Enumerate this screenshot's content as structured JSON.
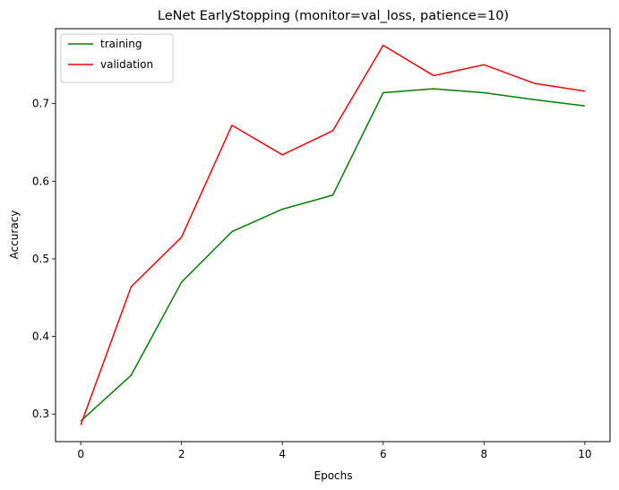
{
  "chart_data": {
    "type": "line",
    "title": "LeNet EarlyStopping (monitor=val_loss, patience=10)",
    "xlabel": "Epochs",
    "ylabel": "Accuracy",
    "xlim": [
      -0.5,
      10.5
    ],
    "ylim": [
      0.2645,
      0.7965
    ],
    "xticks": [
      0,
      2,
      4,
      6,
      8,
      10
    ],
    "yticks": [
      0.3,
      0.4,
      0.5,
      0.6,
      0.7
    ],
    "grid": false,
    "legend_position": "upper-left",
    "x": [
      0,
      1,
      2,
      3,
      4,
      5,
      6,
      7,
      8,
      9,
      10
    ],
    "series": [
      {
        "name": "training",
        "color": "#008000",
        "values": [
          0.291,
          0.35,
          0.47,
          0.535,
          0.564,
          0.582,
          0.714,
          0.719,
          0.714,
          0.705,
          0.697
        ]
      },
      {
        "name": "validation",
        "color": "#ff0000",
        "values": [
          0.286,
          0.464,
          0.528,
          0.672,
          0.634,
          0.665,
          0.775,
          0.736,
          0.75,
          0.726,
          0.716
        ]
      }
    ]
  }
}
